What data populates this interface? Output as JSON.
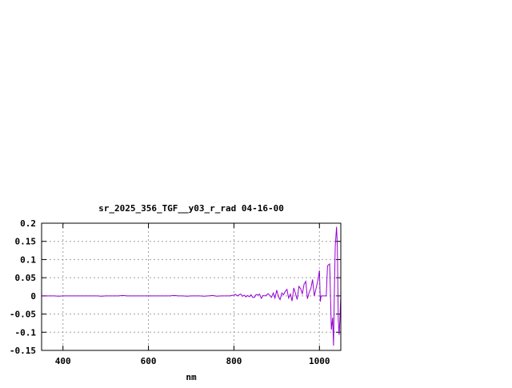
{
  "chart_data": {
    "type": "line",
    "title": "sr_2025_356_TGF__y03_r_rad 04-16-00",
    "xlabel": "nm",
    "ylabel": "",
    "xlim": [
      350,
      1050
    ],
    "ylim": [
      -0.15,
      0.2
    ],
    "xticks": [
      400,
      600,
      800,
      1000
    ],
    "xtick_labels": [
      "400",
      "600",
      "800",
      "1000"
    ],
    "yticks": [
      0.2,
      0.15,
      0.1,
      0.05,
      0,
      -0.05,
      -0.1,
      -0.15
    ],
    "ytick_labels": [
      "0.2",
      "0.15",
      "0.1",
      "0.05",
      "0",
      "-0.05",
      "-0.1",
      "-0.15"
    ],
    "grid": true,
    "line_color": "#9400d3",
    "series": [
      {
        "x": [
          350,
          360,
          370,
          380,
          390,
          400,
          410,
          420,
          430,
          440,
          450,
          460,
          470,
          480,
          490,
          500,
          510,
          520,
          530,
          540,
          550,
          560,
          570,
          580,
          590,
          600,
          610,
          620,
          630,
          640,
          650,
          660,
          670,
          680,
          690,
          700,
          710,
          720,
          730,
          740,
          750,
          760,
          770,
          780,
          790,
          800,
          804,
          808,
          812,
          816,
          820,
          824,
          828,
          832,
          836,
          840,
          844,
          848,
          852,
          856,
          860,
          864,
          868,
          872,
          876,
          880,
          884,
          888,
          892,
          896,
          900,
          904,
          908,
          912,
          916,
          920,
          924,
          928,
          932,
          936,
          940,
          944,
          948,
          952,
          956,
          960,
          964,
          968,
          972,
          976,
          980,
          984,
          988,
          992,
          996,
          1000,
          1002,
          1004,
          1016,
          1019,
          1024,
          1028,
          1031,
          1033,
          1035,
          1037,
          1040,
          1042,
          1044,
          1046,
          1048,
          1050
        ],
        "y": [
          0,
          0,
          0,
          0,
          -0.001,
          0,
          0,
          0,
          0,
          0,
          0,
          0,
          0,
          0,
          -0.001,
          0,
          0,
          0,
          0,
          0.001,
          0,
          0,
          0,
          0,
          0,
          0,
          0,
          0,
          0,
          0,
          0,
          0.001,
          0,
          0,
          -0.001,
          0,
          0,
          0,
          -0.001,
          0,
          0.001,
          -0.001,
          0,
          0,
          0,
          0.002,
          0.004,
          0.0,
          0.003,
          0.005,
          -0.001,
          0.002,
          -0.003,
          0.001,
          -0.002,
          0.003,
          -0.004,
          -0.004,
          0.004,
          0.002,
          0.005,
          -0.007,
          0.001,
          0.0,
          0.002,
          0.006,
          0.001,
          -0.004,
          0.008,
          -0.006,
          0.016,
          -0.002,
          -0.01,
          0.008,
          0.003,
          0.012,
          0.018,
          -0.006,
          0.005,
          -0.014,
          0.022,
          0.006,
          -0.01,
          0.026,
          0.02,
          0.006,
          0.032,
          0.04,
          -0.008,
          0.01,
          0.02,
          0.045,
          0.0,
          0.02,
          0.04,
          0.07,
          -0.016,
          0.0,
          0.0,
          0.083,
          0.088,
          -0.093,
          -0.06,
          -0.137,
          0.018,
          0.138,
          0.19,
          0.135,
          -0.064,
          -0.107,
          -0.064,
          0.0
        ]
      }
    ]
  }
}
